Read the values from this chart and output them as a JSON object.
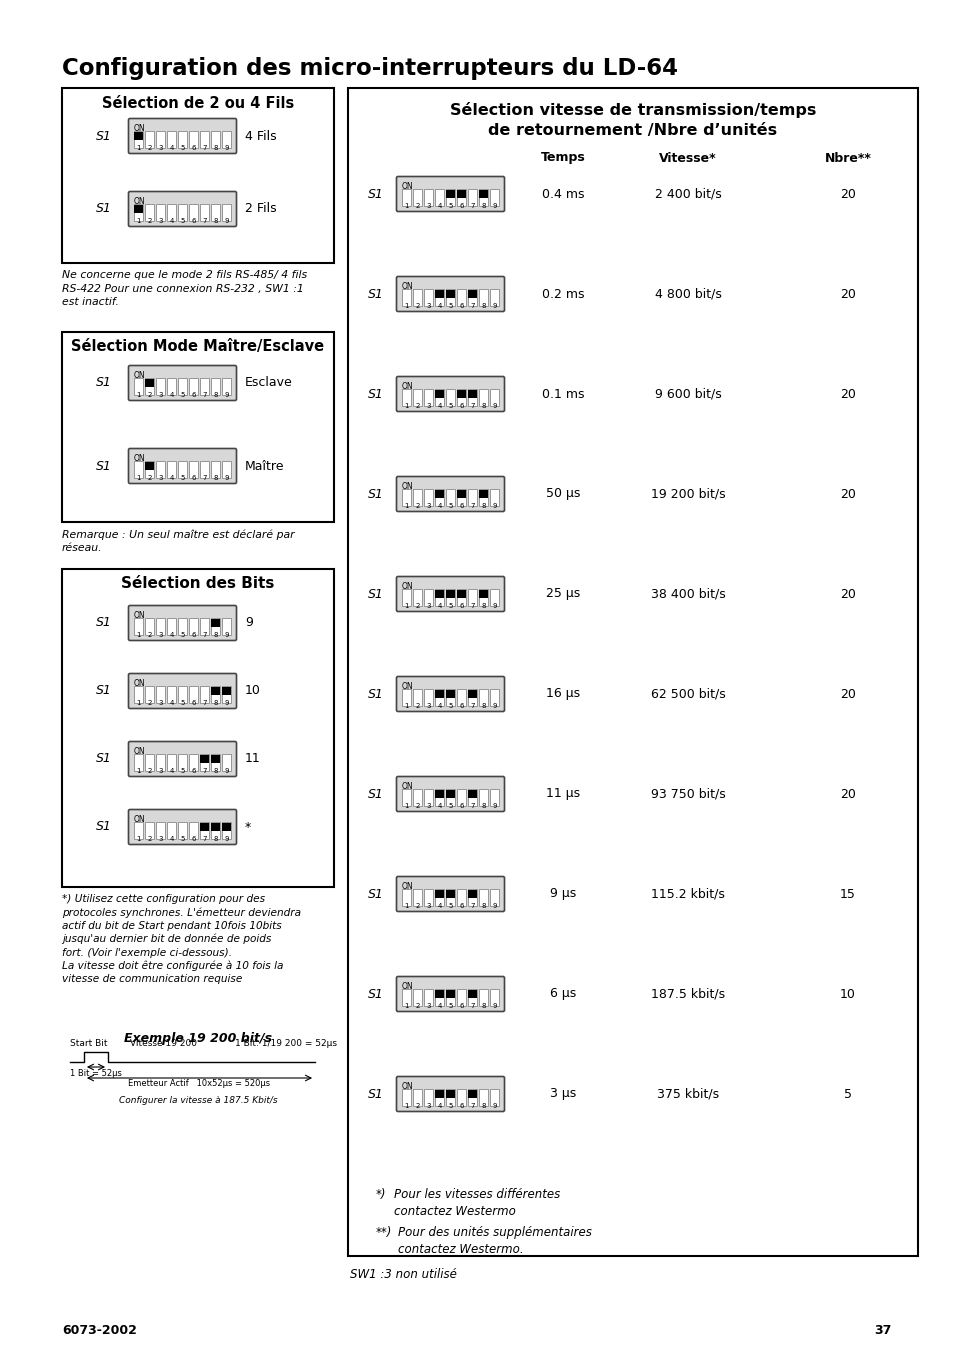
{
  "title": "Configuration des micro-interrupteurs du LD-64",
  "left_box1_title": "Sélection de 2 ou 4 Fils",
  "left_box2_title": "Sélection Mode Maître/Esclave",
  "left_box3_title": "Sélection des Bits",
  "right_box_title_line1": "Sélection vitesse de transmission/temps",
  "right_box_title_line2": "de retournement /Nbre d’unités",
  "note1": "Ne concerne que le mode 2 fils RS-485/ 4 fils\nRS-422 Pour une connexion RS-232 , SW1 :1\nest inactif.",
  "note2": "Remarque : Un seul maître est déclaré par\nréseau.",
  "note3": "*) Utilisez cette configuration pour des\nprotocoles synchrones. L'émetteur deviendra\nactif du bit de Start pendant 10fois 10bits\njusqu'au dernier bit de donnée de poids\nfort. (Voir l'exemple ci-dessous).\nLa vitesse doit être configurée à 10 fois la\nvitesse de communication requise",
  "example_title": "Exemple 19 200 bit/s",
  "sw1_note": "SW1 :3 non utilisé",
  "page_left": "6073-2002",
  "page_right": "37",
  "fils_rows": [
    {
      "label": "4 Fils",
      "on_switches": [
        1
      ]
    },
    {
      "label": "2 Fils",
      "on_switches": [
        1
      ]
    }
  ],
  "maitre_rows": [
    {
      "label": "Esclave",
      "on_switches": [
        2
      ]
    },
    {
      "label": "Maître",
      "on_switches": [
        2
      ]
    }
  ],
  "bits_rows": [
    {
      "label": "9",
      "on_switches": [
        8
      ]
    },
    {
      "label": "10",
      "on_switches": [
        8,
        9
      ]
    },
    {
      "label": "11",
      "on_switches": [
        7,
        8
      ]
    },
    {
      "label": "*",
      "on_switches": [
        7,
        8,
        9
      ]
    }
  ],
  "speed_rows": [
    {
      "temps": "0.4 ms",
      "vitesse": "2 400 bit/s",
      "nbre": "20",
      "on_switches": [
        5,
        6,
        8
      ]
    },
    {
      "temps": "0.2 ms",
      "vitesse": "4 800 bit/s",
      "nbre": "20",
      "on_switches": [
        4,
        5,
        7
      ]
    },
    {
      "temps": "0.1 ms",
      "vitesse": "9 600 bit/s",
      "nbre": "20",
      "on_switches": [
        4,
        6,
        7
      ]
    },
    {
      "temps": "50 µs",
      "vitesse": "19 200 bit/s",
      "nbre": "20",
      "on_switches": [
        4,
        6,
        8
      ]
    },
    {
      "temps": "25 µs",
      "vitesse": "38 400 bit/s",
      "nbre": "20",
      "on_switches": [
        4,
        5,
        6,
        8
      ]
    },
    {
      "temps": "16 µs",
      "vitesse": "62 500 bit/s",
      "nbre": "20",
      "on_switches": [
        4,
        5,
        7
      ]
    },
    {
      "temps": "11 µs",
      "vitesse": "93 750 bit/s",
      "nbre": "20",
      "on_switches": [
        4,
        5,
        7
      ]
    },
    {
      "temps": "9 µs",
      "vitesse": "115.2 kbit/s",
      "nbre": "15",
      "on_switches": [
        4,
        5,
        7
      ]
    },
    {
      "temps": "6 µs",
      "vitesse": "187.5 kbit/s",
      "nbre": "10",
      "on_switches": [
        4,
        5,
        7
      ]
    },
    {
      "temps": "3 µs",
      "vitesse": "375 kbit/s",
      "nbre": "5",
      "on_switches": [
        4,
        5,
        7
      ]
    }
  ]
}
